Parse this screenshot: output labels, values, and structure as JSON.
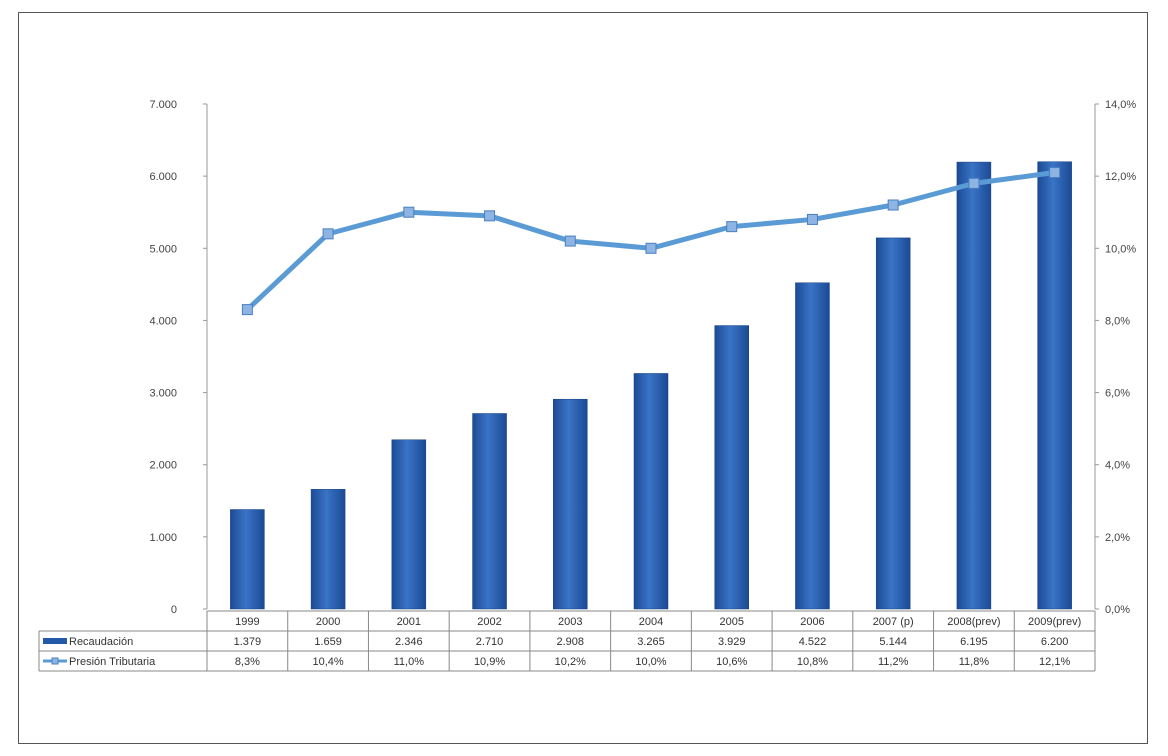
{
  "chart_data": {
    "type": "bar",
    "categories": [
      "1999",
      "2000",
      "2001",
      "2002",
      "2003",
      "2004",
      "2005",
      "2006",
      "2007 (p)",
      "2008(prev)",
      "2009(prev)"
    ],
    "series": [
      {
        "name": "Recaudación",
        "type": "bar",
        "axis": "left",
        "color": "#2458A8",
        "values": [
          1379,
          1659,
          2346,
          2710,
          2908,
          3265,
          3929,
          4522,
          5144,
          6195,
          6200
        ],
        "labels": [
          "1.379",
          "1.659",
          "2.346",
          "2.710",
          "2.908",
          "3.265",
          "3.929",
          "4.522",
          "5.144",
          "6.195",
          "6.200"
        ]
      },
      {
        "name": "Presión Tributaria",
        "type": "line",
        "axis": "right",
        "color": "#5B9BD5",
        "values": [
          8.3,
          10.4,
          11.0,
          10.9,
          10.2,
          10.0,
          10.6,
          10.8,
          11.2,
          11.8,
          12.1
        ],
        "labels": [
          "8,3%",
          "10,4%",
          "11,0%",
          "10,9%",
          "10,2%",
          "10,0%",
          "10,6%",
          "10,8%",
          "11,2%",
          "11,8%",
          "12,1%"
        ]
      }
    ],
    "left_axis": {
      "ylim": [
        0,
        7000
      ],
      "ticks": [
        0,
        1000,
        2000,
        3000,
        4000,
        5000,
        6000,
        7000
      ],
      "tick_labels": [
        "0",
        "1.000",
        "2.000",
        "3.000",
        "4.000",
        "5.000",
        "6.000",
        "7.000"
      ]
    },
    "right_axis": {
      "ylim": [
        0,
        14
      ],
      "ticks": [
        0,
        2,
        4,
        6,
        8,
        10,
        12,
        14
      ],
      "tick_labels": [
        "0,0%",
        "2,0%",
        "4,0%",
        "6,0%",
        "8,0%",
        "10,0%",
        "12,0%",
        "14,0%"
      ]
    },
    "grid": false,
    "legend": "data-table-bottom"
  }
}
